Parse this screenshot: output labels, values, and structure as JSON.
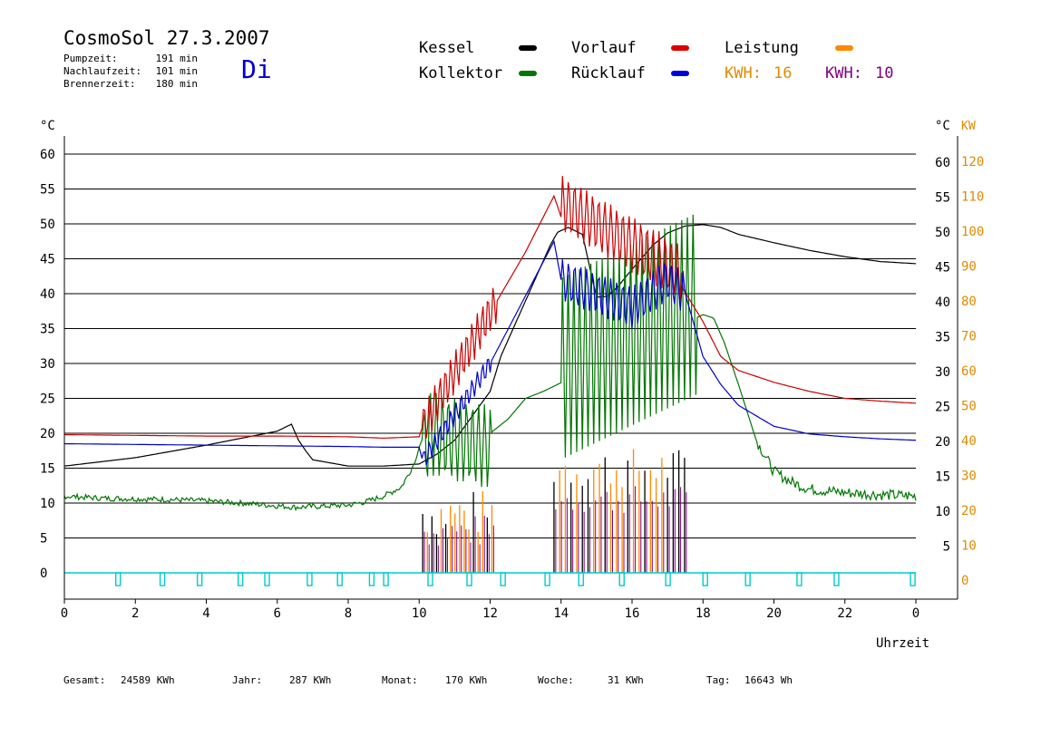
{
  "header": {
    "title": "CosmoSol 27.3.2007",
    "day": "Di",
    "info": [
      {
        "label": "Pumpzeit:",
        "value": "191 min"
      },
      {
        "label": "Nachlaufzeit:",
        "value": "101 min"
      },
      {
        "label": "Brennerzeit:",
        "value": "180 min"
      }
    ]
  },
  "legend": {
    "kessel": "Kessel",
    "kollektor": "Kollektor",
    "vorlauf": "Vorlauf",
    "ruecklauf": "Rücklauf",
    "leistung": "Leistung",
    "kwh1_label": "KWH:",
    "kwh1_value": "16",
    "kwh2_label": "KWH:",
    "kwh2_value": "10"
  },
  "colors": {
    "kessel": "#000000",
    "kollektor": "#007700",
    "vorlauf": "#cc0000",
    "ruecklauf": "#0000cc",
    "leistung": "#ff8800",
    "kwh_orange": "#e08a00",
    "kwh_purple": "#800080",
    "pump": "#00cccc"
  },
  "footer": {
    "gesamt_label": "Gesamt:",
    "gesamt_value": "24589 KWh",
    "jahr_label": "Jahr:",
    "jahr_value": "287 KWh",
    "monat_label": "Monat:",
    "monat_value": "170 KWh",
    "woche_label": "Woche:",
    "woche_value": "31 KWh",
    "tag_label": "Tag:",
    "tag_value": "16643 Wh"
  },
  "chart_data": {
    "type": "line",
    "xlabel": "Uhrzeit",
    "ylabel_left": "°C",
    "ylabel_right_c": "°C",
    "ylabel_right_kw": "KW",
    "x_ticks": [
      "0",
      "2",
      "4",
      "6",
      "8",
      "10",
      "12",
      "14",
      "16",
      "18",
      "20",
      "22",
      "0"
    ],
    "y_ticks": [
      0,
      5,
      10,
      15,
      20,
      25,
      30,
      35,
      40,
      45,
      50,
      55,
      60
    ],
    "kw_ticks": [
      0,
      10,
      20,
      30,
      40,
      50,
      60,
      70,
      80,
      90,
      100,
      110,
      120
    ],
    "xlim": [
      0,
      24
    ],
    "ylim": [
      -4,
      62
    ],
    "grid": true,
    "series": [
      {
        "name": "Kessel",
        "color": "#000000",
        "points": [
          [
            0,
            15.3
          ],
          [
            2,
            16.5
          ],
          [
            4,
            18.3
          ],
          [
            6,
            20.3
          ],
          [
            6.4,
            21.3
          ],
          [
            6.6,
            19
          ],
          [
            6.8,
            17.5
          ],
          [
            7,
            16.2
          ],
          [
            8,
            15.3
          ],
          [
            9,
            15.3
          ],
          [
            10,
            15.6
          ],
          [
            10.5,
            17
          ],
          [
            11,
            19
          ],
          [
            12,
            26
          ],
          [
            12.3,
            31
          ],
          [
            13,
            39
          ],
          [
            13.7,
            47
          ],
          [
            13.9,
            48.8
          ],
          [
            14.2,
            49.5
          ],
          [
            14.6,
            48.5
          ],
          [
            14.8,
            44
          ],
          [
            15,
            39.5
          ],
          [
            15.3,
            39.6
          ],
          [
            15.6,
            41
          ],
          [
            16,
            43.5
          ],
          [
            16.6,
            47
          ],
          [
            17,
            48.7
          ],
          [
            17.5,
            49.7
          ],
          [
            18,
            49.9
          ],
          [
            18.5,
            49.5
          ],
          [
            19,
            48.5
          ],
          [
            20,
            47.3
          ],
          [
            21,
            46.2
          ],
          [
            22,
            45.3
          ],
          [
            23,
            44.6
          ],
          [
            24,
            44.3
          ]
        ]
      },
      {
        "name": "Kollektor",
        "color": "#007700",
        "points": [
          [
            0,
            11
          ],
          [
            1,
            10.7
          ],
          [
            2,
            10.6
          ],
          [
            3,
            10.5
          ],
          [
            4,
            10.3
          ],
          [
            5,
            10
          ],
          [
            5.5,
            9.8
          ],
          [
            6,
            9.6
          ],
          [
            6.5,
            9.4
          ],
          [
            7,
            9.5
          ],
          [
            8,
            9.7
          ],
          [
            8.5,
            10.2
          ],
          [
            9,
            11
          ],
          [
            9.5,
            12.3
          ],
          [
            9.9,
            16
          ],
          [
            10,
            18
          ],
          [
            10.3,
            22
          ],
          [
            12,
            20
          ],
          [
            12.5,
            22
          ],
          [
            13,
            25
          ],
          [
            13.5,
            26
          ],
          [
            13.9,
            27
          ],
          [
            18,
            37
          ],
          [
            18.3,
            36.5
          ],
          [
            18.6,
            33
          ],
          [
            19,
            27
          ],
          [
            19.5,
            19
          ],
          [
            20,
            14.5
          ],
          [
            20.5,
            13
          ],
          [
            21,
            12
          ],
          [
            22,
            11.5
          ],
          [
            23,
            11.2
          ],
          [
            24,
            11
          ]
        ]
      },
      {
        "name": "Vorlauf",
        "color": "#cc0000",
        "points": [
          [
            0,
            19.8
          ],
          [
            2,
            19.7
          ],
          [
            4,
            19.6
          ],
          [
            6,
            19.6
          ],
          [
            8,
            19.5
          ],
          [
            9,
            19.3
          ],
          [
            10,
            19.5
          ],
          [
            10.1,
            21
          ],
          [
            12.2,
            39
          ],
          [
            13,
            46
          ],
          [
            13.5,
            51
          ],
          [
            13.8,
            54
          ],
          [
            14,
            51
          ],
          [
            16,
            45
          ],
          [
            17.4,
            41
          ],
          [
            18,
            36
          ],
          [
            18.5,
            31
          ],
          [
            19,
            29
          ],
          [
            20,
            27.3
          ],
          [
            21,
            26
          ],
          [
            22,
            25
          ],
          [
            23,
            24.6
          ],
          [
            24,
            24.3
          ]
        ]
      },
      {
        "name": "Rücklauf",
        "color": "#0000cc",
        "points": [
          [
            0,
            18.5
          ],
          [
            2,
            18.4
          ],
          [
            4,
            18.3
          ],
          [
            6,
            18.2
          ],
          [
            8,
            18.1
          ],
          [
            9,
            18
          ],
          [
            10,
            18
          ],
          [
            10.1,
            16
          ],
          [
            12,
            30
          ],
          [
            13.8,
            47.5
          ],
          [
            14,
            42
          ],
          [
            16,
            38
          ],
          [
            17,
            42
          ],
          [
            17.5,
            40
          ],
          [
            18,
            31
          ],
          [
            18.5,
            27
          ],
          [
            19,
            24
          ],
          [
            20,
            21
          ],
          [
            21,
            19.9
          ],
          [
            22,
            19.5
          ],
          [
            23,
            19.2
          ],
          [
            24,
            19
          ]
        ]
      }
    ],
    "leistung_bursts": [
      [
        10.1,
        12.1
      ],
      [
        13.8,
        17.6
      ]
    ],
    "pump_pulses": [
      1.5,
      2.75,
      3.8,
      4.95,
      5.7,
      6.9,
      7.75,
      8.65,
      9.05,
      10.3,
      11.4,
      12.35,
      13.6,
      14.55,
      15.7,
      17.0,
      18.05,
      19.25,
      20.7,
      21.75,
      23.9
    ]
  }
}
